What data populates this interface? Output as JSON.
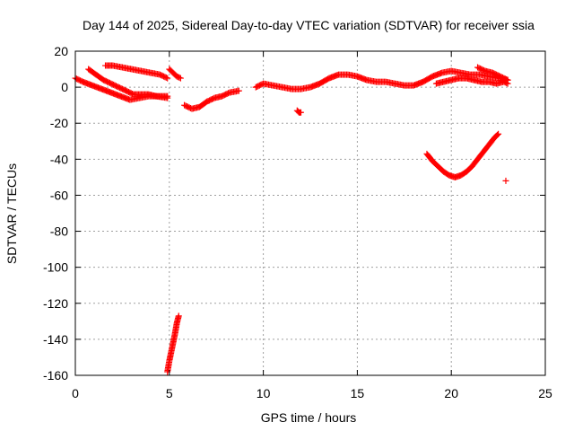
{
  "chart_data": {
    "type": "scatter",
    "title": "Day 144 of 2025, Sidereal Day-to-day VTEC variation (SDTVAR) for receiver ssia",
    "xlabel": "GPS time / hours",
    "ylabel": "SDTVAR / TECUs",
    "xlim": [
      0,
      25
    ],
    "ylim": [
      -160,
      20
    ],
    "xticks": [
      0,
      5,
      10,
      15,
      20,
      25
    ],
    "yticks": [
      -160,
      -140,
      -120,
      -100,
      -80,
      -60,
      -40,
      -20,
      0,
      20
    ],
    "grid": true,
    "marker": "+",
    "color": "#ff0000",
    "series": [
      {
        "x": [
          0.0,
          0.4,
          0.9,
          1.4,
          1.9,
          2.4,
          2.9,
          3.4,
          3.9,
          4.4,
          4.9
        ],
        "y": [
          5,
          3,
          1,
          -1,
          -3,
          -5,
          -7,
          -6,
          -5,
          -5,
          -5
        ]
      },
      {
        "x": [
          0.7,
          1.1,
          1.5,
          1.9,
          2.3,
          2.7,
          3.1,
          3.5,
          3.9,
          4.3,
          4.9
        ],
        "y": [
          10,
          7,
          4,
          2,
          0,
          -2,
          -4,
          -4,
          -4,
          -5,
          -6
        ]
      },
      {
        "x": [
          1.6,
          2.0,
          2.5,
          3.0,
          3.5,
          4.0,
          4.5,
          4.9
        ],
        "y": [
          12,
          12,
          11,
          10,
          9,
          8,
          7,
          5
        ]
      },
      {
        "x": [
          5.0,
          5.2,
          5.4,
          5.6
        ],
        "y": [
          10,
          8,
          6,
          5
        ]
      },
      {
        "x": [
          5.8,
          6.2,
          6.6,
          7.0,
          7.4,
          7.8,
          8.2,
          8.7
        ],
        "y": [
          -10,
          -12,
          -11,
          -8,
          -6,
          -5,
          -3,
          -2
        ]
      },
      {
        "x": [
          9.6,
          10.0,
          10.5,
          11.0,
          11.5,
          12.0,
          12.5,
          13.0,
          13.5,
          14.0,
          14.5,
          15.0,
          15.5,
          16.0,
          16.5,
          17.0,
          17.5,
          18.0,
          18.5,
          19.0,
          19.5,
          20.0,
          20.5,
          21.0,
          21.5,
          22.0,
          22.5,
          23.0
        ],
        "y": [
          0,
          2,
          1,
          0,
          -1,
          -1,
          0,
          2,
          5,
          7,
          7,
          6,
          4,
          3,
          3,
          2,
          1,
          1,
          3,
          6,
          8,
          9,
          8,
          7,
          7,
          6,
          5,
          4
        ]
      },
      {
        "x": [
          19.2,
          19.6,
          20.0,
          20.4,
          20.8,
          21.2,
          21.6,
          22.0,
          22.4,
          22.8,
          23.0
        ],
        "y": [
          2,
          3,
          4,
          5,
          5,
          4,
          3,
          3,
          2,
          3,
          2
        ]
      },
      {
        "x": [
          21.4,
          21.8,
          22.2,
          22.6,
          23.0
        ],
        "y": [
          11,
          9,
          8,
          6,
          4
        ]
      },
      {
        "x": [
          11.8,
          11.9,
          12.0
        ],
        "y": [
          -13,
          -14,
          -14
        ]
      },
      {
        "x": [
          4.9,
          5.0,
          5.1,
          5.2,
          5.3,
          5.4,
          5.5
        ],
        "y": [
          -158,
          -152,
          -147,
          -142,
          -137,
          -131,
          -127
        ]
      },
      {
        "x": [
          18.7,
          19.0,
          19.3,
          19.6,
          19.9,
          20.2,
          20.5,
          20.8,
          21.1,
          21.4,
          21.7,
          22.0,
          22.3,
          22.5
        ],
        "y": [
          -37,
          -41,
          -44,
          -47,
          -49,
          -50,
          -49,
          -47,
          -44,
          -40,
          -36,
          -32,
          -28,
          -26
        ]
      },
      {
        "x": [
          22.9
        ],
        "y": [
          -52
        ]
      }
    ]
  }
}
